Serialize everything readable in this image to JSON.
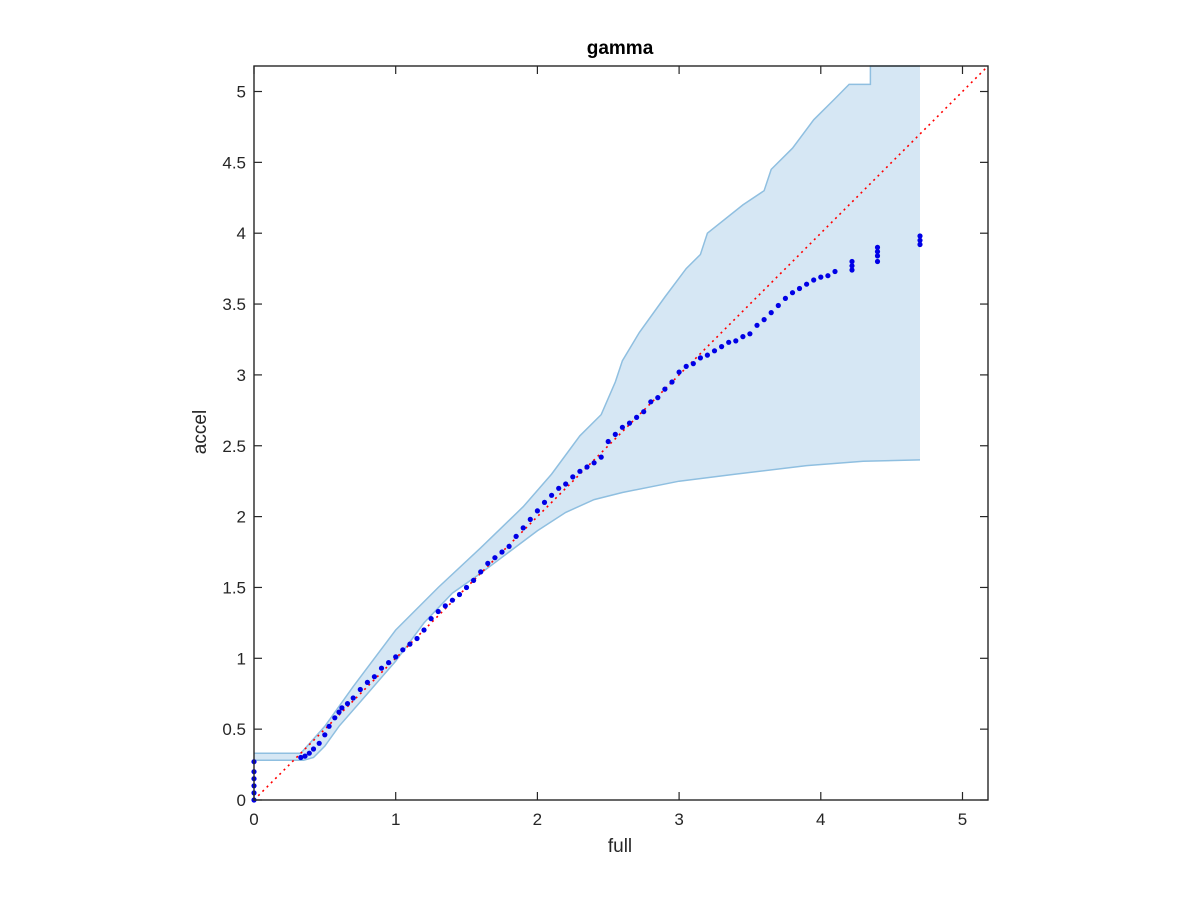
{
  "chart_data": {
    "type": "scatter",
    "title": "gamma",
    "xlabel": "full",
    "ylabel": "accel",
    "xlim": [
      0,
      5.18
    ],
    "ylim": [
      0,
      5.18
    ],
    "xticks": [
      0,
      1,
      2,
      3,
      4,
      5
    ],
    "xtick_labels": [
      "0",
      "1",
      "2",
      "3",
      "4",
      "5"
    ],
    "yticks": [
      0,
      0.5,
      1,
      1.5,
      2,
      2.5,
      3,
      3.5,
      4,
      4.5,
      5
    ],
    "ytick_labels": [
      "0",
      "0.5",
      "1",
      "1.5",
      "2",
      "2.5",
      "3",
      "3.5",
      "4",
      "4.5",
      "5"
    ],
    "grid": false,
    "colors": {
      "points": "#0000e6",
      "reference_line": "#ff0000",
      "band_fill": "#d6e7f4",
      "band_edge": "#8fbfe0"
    },
    "reference_line": {
      "x": [
        0,
        5.18
      ],
      "y": [
        0,
        5.18
      ],
      "style": "dotted"
    },
    "band": {
      "upper": [
        [
          0,
          0.33
        ],
        [
          0.33,
          0.33
        ],
        [
          0.5,
          0.52
        ],
        [
          0.7,
          0.8
        ],
        [
          1.0,
          1.2
        ],
        [
          1.3,
          1.5
        ],
        [
          1.6,
          1.78
        ],
        [
          1.9,
          2.07
        ],
        [
          2.1,
          2.3
        ],
        [
          2.3,
          2.57
        ],
        [
          2.45,
          2.72
        ],
        [
          2.55,
          2.95
        ],
        [
          2.6,
          3.1
        ],
        [
          2.72,
          3.3
        ],
        [
          2.9,
          3.55
        ],
        [
          3.05,
          3.75
        ],
        [
          3.15,
          3.85
        ],
        [
          3.2,
          4.0
        ],
        [
          3.45,
          4.2
        ],
        [
          3.6,
          4.3
        ],
        [
          3.65,
          4.45
        ],
        [
          3.8,
          4.6
        ],
        [
          3.95,
          4.8
        ],
        [
          4.1,
          4.95
        ],
        [
          4.2,
          5.05
        ],
        [
          4.35,
          5.05
        ],
        [
          4.35,
          5.18
        ],
        [
          4.7,
          5.18
        ]
      ],
      "lower": [
        [
          4.7,
          2.4
        ],
        [
          4.3,
          2.39
        ],
        [
          3.9,
          2.36
        ],
        [
          3.4,
          2.3
        ],
        [
          3.0,
          2.25
        ],
        [
          2.6,
          2.17
        ],
        [
          2.4,
          2.12
        ],
        [
          2.2,
          2.03
        ],
        [
          2.0,
          1.9
        ],
        [
          1.8,
          1.75
        ],
        [
          1.6,
          1.6
        ],
        [
          1.4,
          1.46
        ],
        [
          1.2,
          1.25
        ],
        [
          1.0,
          0.98
        ],
        [
          0.8,
          0.75
        ],
        [
          0.6,
          0.52
        ],
        [
          0.5,
          0.38
        ],
        [
          0.42,
          0.3
        ],
        [
          0.35,
          0.28
        ],
        [
          0,
          0.28
        ]
      ]
    },
    "series": [
      {
        "x": [
          0,
          0,
          0,
          0,
          0,
          0,
          0.33,
          0.36,
          0.39,
          0.42,
          0.46,
          0.5,
          0.53,
          0.57,
          0.6,
          0.62,
          0.66,
          0.7,
          0.75,
          0.8,
          0.85,
          0.9,
          0.95,
          1.0,
          1.05,
          1.1,
          1.15,
          1.2,
          1.25,
          1.3,
          1.35,
          1.4,
          1.45,
          1.5,
          1.55,
          1.6,
          1.65,
          1.7,
          1.75,
          1.8,
          1.85,
          1.9,
          1.95,
          2.0,
          2.05,
          2.1,
          2.15,
          2.2,
          2.25,
          2.3,
          2.35,
          2.4,
          2.45,
          2.5,
          2.55,
          2.6,
          2.65,
          2.7,
          2.75,
          2.8,
          2.85,
          2.9,
          2.95,
          3.0,
          3.05,
          3.1,
          3.15,
          3.2,
          3.25,
          3.3,
          3.35,
          3.4,
          3.45,
          3.5,
          3.55,
          3.6,
          3.65,
          3.7,
          3.75,
          3.8,
          3.85,
          3.9,
          3.95,
          4.0,
          4.05,
          4.1,
          4.22,
          4.22,
          4.22,
          4.4,
          4.4,
          4.4,
          4.4,
          4.7,
          4.7,
          4.7
        ],
        "y": [
          0,
          0.05,
          0.1,
          0.15,
          0.2,
          0.27,
          0.3,
          0.31,
          0.33,
          0.36,
          0.4,
          0.46,
          0.52,
          0.58,
          0.62,
          0.65,
          0.68,
          0.72,
          0.78,
          0.83,
          0.87,
          0.93,
          0.97,
          1.01,
          1.06,
          1.1,
          1.14,
          1.2,
          1.28,
          1.33,
          1.37,
          1.41,
          1.45,
          1.5,
          1.55,
          1.61,
          1.67,
          1.71,
          1.75,
          1.79,
          1.86,
          1.92,
          1.98,
          2.04,
          2.1,
          2.15,
          2.2,
          2.23,
          2.28,
          2.32,
          2.35,
          2.38,
          2.42,
          2.53,
          2.58,
          2.63,
          2.66,
          2.7,
          2.74,
          2.81,
          2.84,
          2.9,
          2.95,
          3.02,
          3.06,
          3.08,
          3.12,
          3.14,
          3.17,
          3.2,
          3.23,
          3.24,
          3.27,
          3.29,
          3.35,
          3.39,
          3.44,
          3.49,
          3.54,
          3.58,
          3.61,
          3.64,
          3.67,
          3.69,
          3.7,
          3.73,
          3.74,
          3.77,
          3.8,
          3.8,
          3.84,
          3.87,
          3.9,
          3.92,
          3.95,
          3.98
        ]
      }
    ]
  }
}
